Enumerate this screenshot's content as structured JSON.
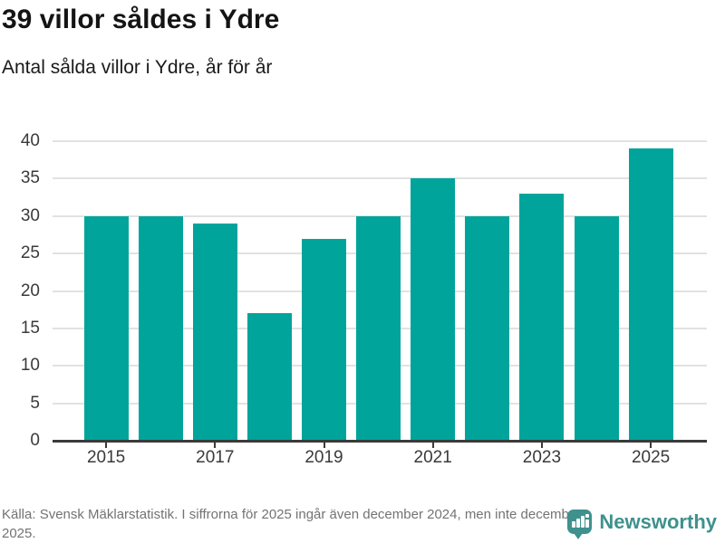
{
  "header": {
    "title": "39 villor såldes i Ydre",
    "subtitle": "Antal sålda villor i Ydre, år för år"
  },
  "chart_data": {
    "type": "bar",
    "title": "39 villor såldes i Ydre",
    "subtitle": "Antal sålda villor i Ydre, år för år",
    "categories": [
      "2015",
      "2016",
      "2017",
      "2018",
      "2019",
      "2020",
      "2021",
      "2022",
      "2023",
      "2024",
      "2025"
    ],
    "values": [
      30,
      30,
      29,
      17,
      27,
      30,
      35,
      30,
      33,
      30,
      39
    ],
    "xlabel": "",
    "ylabel": "",
    "ylim": [
      0,
      40
    ],
    "yticks": [
      0,
      5,
      10,
      15,
      20,
      25,
      30,
      35,
      40
    ],
    "xtick_labels": [
      "2015",
      "2017",
      "2019",
      "2021",
      "2023",
      "2025"
    ],
    "grid": true,
    "legend": "none",
    "bar_color": "#00a49b"
  },
  "colors": {
    "bar": "#00a49b",
    "axis": "#3a3a3a",
    "gridline": "#e2e2e2",
    "title_text": "#141414",
    "footer_text": "#737373",
    "brand_teal": "#3e918d"
  },
  "footer": {
    "source": "Källa: Svensk Mäklarstatistik. I siffrorna för 2025 ingår även december 2024, men inte december 2025.",
    "brand": "Newsworthy"
  }
}
